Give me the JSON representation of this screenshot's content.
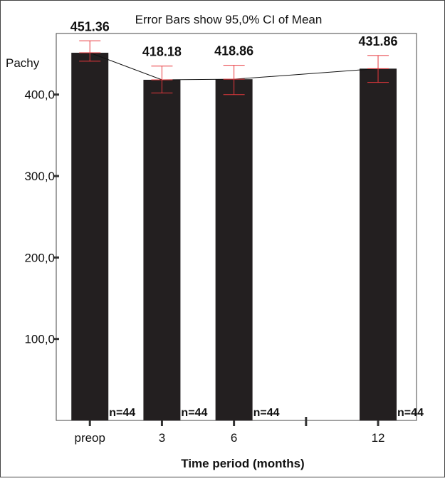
{
  "chart_data": {
    "type": "bar",
    "title": "Error Bars show 95,0% CI of Mean",
    "ylabel": "Pachy",
    "xlabel": "Time period (months)",
    "categories": [
      "preop",
      "3",
      "6",
      "12"
    ],
    "x_positions": [
      0,
      3,
      6,
      12
    ],
    "x_extra_ticks": [
      9
    ],
    "values": [
      451.36,
      418.18,
      418.86,
      431.86
    ],
    "value_labels": [
      "451.36",
      "418.18",
      "418.86",
      "431.86"
    ],
    "ci_lower": [
      441,
      402,
      400,
      415
    ],
    "ci_upper": [
      466,
      435,
      436,
      448
    ],
    "n_labels": [
      "n=44",
      "n=44",
      "n=44",
      "n=44"
    ],
    "ylim": [
      0,
      475
    ],
    "yticks": [
      100,
      200,
      300,
      400
    ],
    "ytick_labels": [
      "100,0",
      "200,0",
      "300,0",
      "400,0"
    ],
    "xlim": [
      -1.4,
      13.6
    ],
    "grid": false,
    "legend": "none",
    "colors": {
      "bar": "#231f20",
      "error_bar": "#e8383d",
      "mean_line": "#111111",
      "axis": "#333333",
      "frame": "#444444"
    }
  }
}
